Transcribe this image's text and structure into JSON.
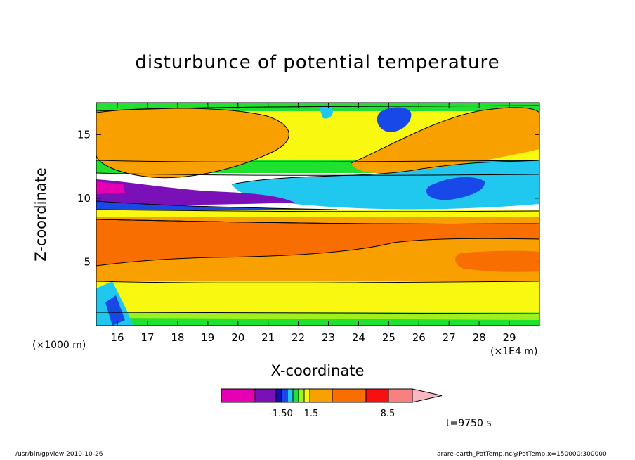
{
  "chart_data": {
    "type": "heatmap",
    "title": "disturbunce of potential temperature",
    "xlabel": "X-coordinate",
    "ylabel": "Z-coordinate",
    "x_unit_left": "(×1000 m)",
    "x_unit_right": "(×1E4 m)",
    "x_ticks": [
      "16",
      "17",
      "18",
      "19",
      "20",
      "21",
      "22",
      "23",
      "24",
      "25",
      "26",
      "27",
      "28",
      "29"
    ],
    "y_ticks": [
      "5",
      "10",
      "15"
    ],
    "xlim": [
      15.3,
      30.0
    ],
    "ylim": [
      0.0,
      17.5
    ],
    "time_label": "t=9750 s",
    "colorbar": {
      "colors": [
        "#e600b4",
        "#7a10b8",
        "#1010b0",
        "#1848e8",
        "#20c8f0",
        "#20e030",
        "#a0f020",
        "#f8f810",
        "#f8a000",
        "#f86e00",
        "#f81010",
        "#f88080",
        "#f8b8c0"
      ],
      "labels": [
        {
          "text": "-1.50",
          "position": "lower"
        },
        {
          "text": "1.5",
          "position": "upper"
        },
        {
          "text": "8.5",
          "position": "top"
        }
      ]
    }
  },
  "footer": {
    "left": "/usr/bin/gpview   2010-10-26",
    "right": "arare-earth_PotTemp.nc@PotTemp,x=150000:300000"
  }
}
